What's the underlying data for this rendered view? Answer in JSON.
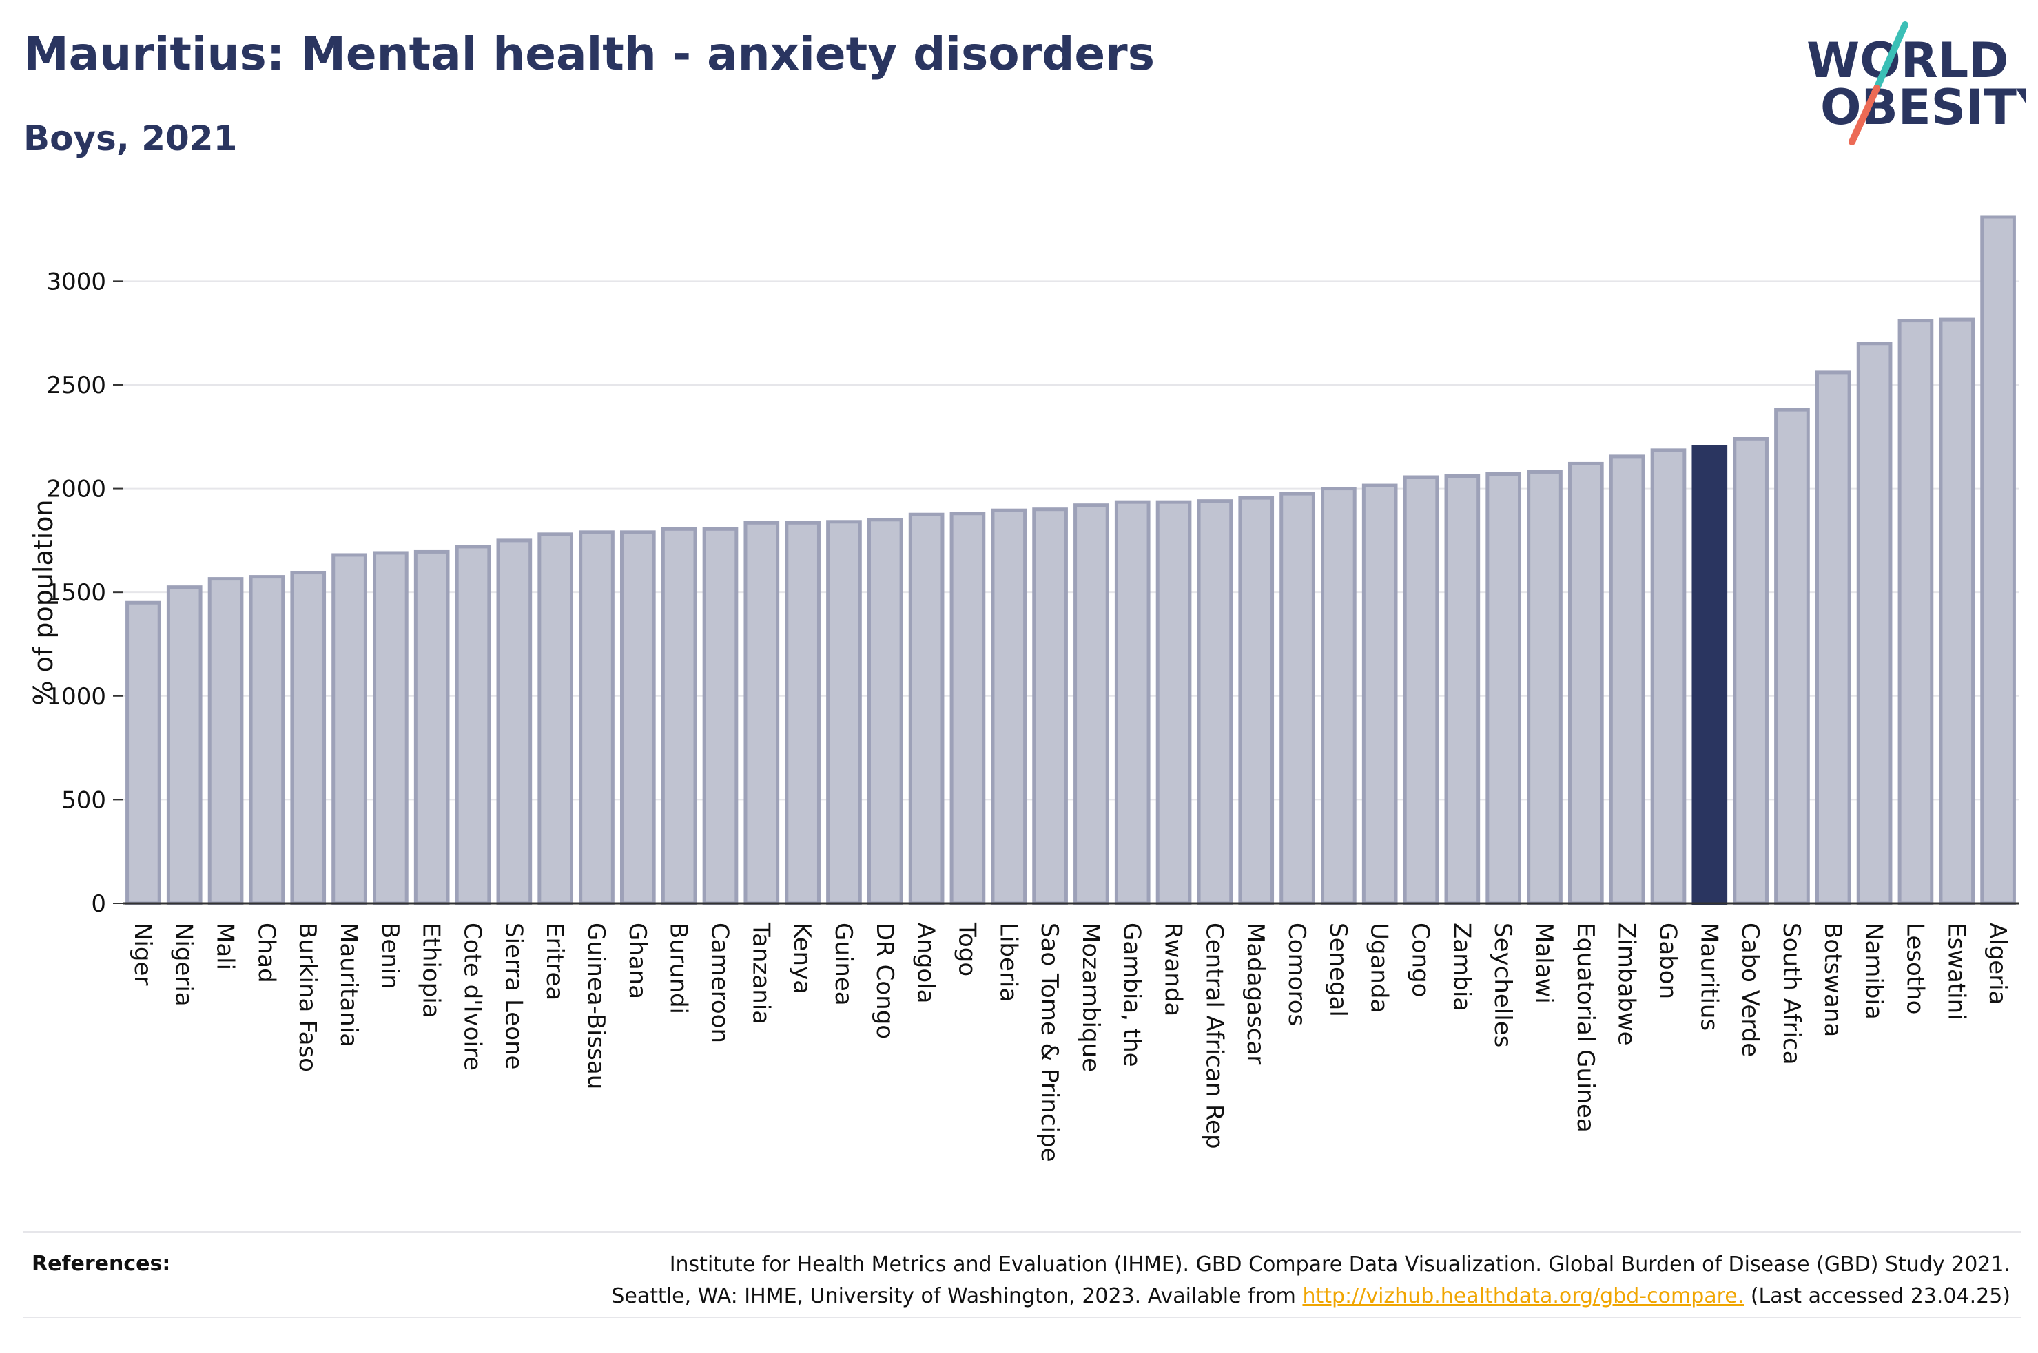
{
  "header": {
    "title": "Mauritius: Mental health - anxiety disorders",
    "subtitle": "Boys, 2021"
  },
  "logo": {
    "line1": "WORLD",
    "line2": "OBESITY",
    "text_color": "#2a3560",
    "slash_colors": [
      "#3bbfb6",
      "#ec6a55"
    ]
  },
  "footer": {
    "references_label": "References:",
    "ref_line1": "Institute for Health Metrics and Evaluation (IHME). GBD Compare Data Visualization. Global Burden of Disease (GBD) Study 2021.",
    "ref_line2_prefix": "Seattle, WA: IHME, University of Washington, 2023. Available from",
    "ref_link": "http://vizhub.healthdata.org/gbd-compare.",
    "ref_line2_suffix": "(Last accessed 23.04.25)"
  },
  "chart_data": {
    "type": "bar",
    "ylabel": "% of population",
    "ylim": [
      0,
      3300
    ],
    "yticks": [
      0,
      500,
      1000,
      1500,
      2000,
      2500,
      3000
    ],
    "grid": true,
    "highlight": "Mauritius",
    "colors": {
      "bar": "#c0c3d1",
      "bar_border": "#9da1b8",
      "highlight": "#2a3560"
    },
    "categories": [
      "Niger",
      "Nigeria",
      "Mali",
      "Chad",
      "Burkina Faso",
      "Mauritania",
      "Benin",
      "Ethiopia",
      "Cote d'Ivoire",
      "Sierra Leone",
      "Eritrea",
      "Guinea-Bissau",
      "Ghana",
      "Burundi",
      "Cameroon",
      "Tanzania",
      "Kenya",
      "Guinea",
      "DR Congo",
      "Angola",
      "Togo",
      "Liberia",
      "Sao Tome & Principe",
      "Mozambique",
      "Gambia, the",
      "Rwanda",
      "Central African Rep",
      "Madagascar",
      "Comoros",
      "Senegal",
      "Uganda",
      "Congo",
      "Zambia",
      "Seychelles",
      "Malawi",
      "Equatorial Guinea",
      "Zimbabwe",
      "Gabon",
      "Mauritius",
      "Cabo Verde",
      "South Africa",
      "Botswana",
      "Namibia",
      "Lesotho",
      "Eswatini",
      "Algeria"
    ],
    "values": [
      1450,
      1525,
      1565,
      1575,
      1595,
      1680,
      1690,
      1695,
      1720,
      1750,
      1780,
      1790,
      1790,
      1805,
      1805,
      1835,
      1835,
      1840,
      1850,
      1875,
      1880,
      1895,
      1900,
      1920,
      1935,
      1935,
      1940,
      1955,
      1975,
      2000,
      2015,
      2055,
      2060,
      2070,
      2080,
      2120,
      2155,
      2185,
      2200,
      2240,
      2380,
      2560,
      2700,
      2810,
      2815,
      3310
    ]
  }
}
